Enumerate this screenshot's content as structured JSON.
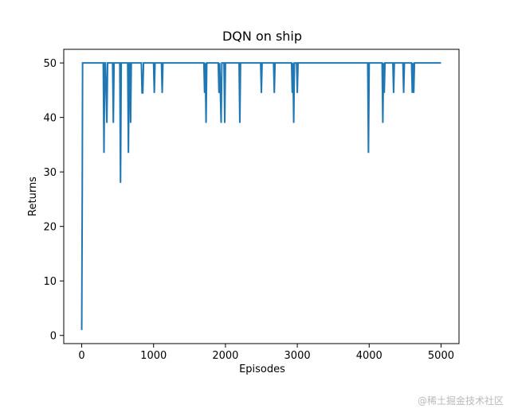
{
  "chart_data": {
    "type": "line",
    "title": "DQN on ship",
    "xlabel": "Episodes",
    "ylabel": "Returns",
    "xlim": [
      -250,
      5250
    ],
    "ylim": [
      -1.5,
      52.5
    ],
    "xticks": [
      0,
      1000,
      2000,
      3000,
      4000,
      5000
    ],
    "yticks": [
      0,
      10,
      20,
      30,
      40,
      50
    ],
    "grid": false,
    "line_color": "#1f77b4",
    "series": [
      {
        "x": [
          0,
          8,
          12,
          16,
          20,
          300,
          310,
          320,
          330,
          350,
          360,
          380,
          390,
          430,
          440,
          450,
          530,
          540,
          550,
          640,
          650,
          660,
          670,
          680,
          690,
          830,
          840,
          850,
          860,
          1000,
          1010,
          1020,
          1110,
          1120,
          1130,
          1700,
          1710,
          1720,
          1730,
          1740,
          1750,
          1900,
          1910,
          1920,
          1940,
          1950,
          1960,
          1980,
          1990,
          2000,
          2190,
          2200,
          2210,
          2490,
          2500,
          2510,
          2670,
          2680,
          2690,
          2920,
          2930,
          2940,
          2950,
          2960,
          2990,
          3000,
          3010,
          3980,
          3990,
          4000,
          4180,
          4190,
          4200,
          4210,
          4220,
          4330,
          4340,
          4350,
          4470,
          4480,
          4490,
          4590,
          4600,
          4610,
          4620,
          4630,
          5000
        ],
        "y": [
          1,
          28,
          50,
          50,
          50,
          50,
          33.5,
          50,
          50,
          39,
          50,
          50,
          50,
          50,
          39,
          50,
          50,
          28,
          50,
          50,
          33.5,
          50,
          50,
          39,
          50,
          50,
          44.5,
          44.5,
          50,
          50,
          44.5,
          50,
          50,
          44.5,
          50,
          50,
          44.5,
          50,
          39,
          50,
          50,
          50,
          44.5,
          50,
          39,
          50,
          50,
          50,
          39,
          50,
          50,
          39,
          50,
          50,
          44.5,
          50,
          50,
          44.5,
          50,
          50,
          44.5,
          50,
          39,
          50,
          50,
          44.5,
          50,
          50,
          33.5,
          50,
          50,
          39,
          50,
          44.5,
          50,
          50,
          44.5,
          50,
          50,
          44.5,
          50,
          50,
          44.5,
          50,
          44.5,
          50,
          50
        ]
      }
    ]
  },
  "watermark": "@稀土掘金技术社区"
}
